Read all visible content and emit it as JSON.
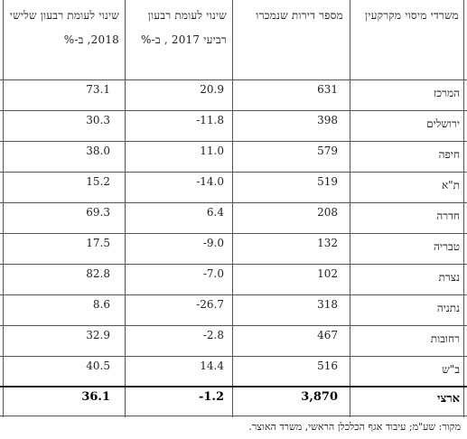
{
  "table": {
    "headers": {
      "district": "משרדי מיסוי מקרקעין",
      "apartments": "מספר דירות שנמכרו",
      "change_2017": "שינוי לעומת רבעון רביעי 2017 , ב-%",
      "change_2018": "שינוי לעומת רבעון שלישי 2018, ב-%"
    },
    "rows": [
      {
        "district": "המרכז",
        "apartments": "631",
        "change_2017": "20.9",
        "change_2018": "73.1"
      },
      {
        "district": "ירושלים",
        "apartments": "398",
        "change_2017": "-11.8",
        "change_2018": "30.3"
      },
      {
        "district": "חיפה",
        "apartments": "579",
        "change_2017": "11.0",
        "change_2018": "38.0"
      },
      {
        "district": "ת\"א",
        "apartments": "519",
        "change_2017": "-14.0",
        "change_2018": "15.2"
      },
      {
        "district": "חדרה",
        "apartments": "208",
        "change_2017": "6.4",
        "change_2018": "69.3"
      },
      {
        "district": "טבריה",
        "apartments": "132",
        "change_2017": "-9.0",
        "change_2018": "17.5"
      },
      {
        "district": "נצרת",
        "apartments": "102",
        "change_2017": "-7.0",
        "change_2018": "82.8"
      },
      {
        "district": "נתניה",
        "apartments": "318",
        "change_2017": "-26.7",
        "change_2018": "8.6"
      },
      {
        "district": "רחובות",
        "apartments": "467",
        "change_2017": "-2.8",
        "change_2018": "32.9"
      },
      {
        "district": "ב\"ש",
        "apartments": "516",
        "change_2017": "14.4",
        "change_2018": "40.5"
      }
    ],
    "total": {
      "district": "ארצי",
      "apartments": "3,870",
      "change_2017": "-1.2",
      "change_2018": "36.1"
    },
    "source": "מקור: שע\"מ; עיבוד אגף הכלכלן הראשי, משרד האוצר."
  }
}
